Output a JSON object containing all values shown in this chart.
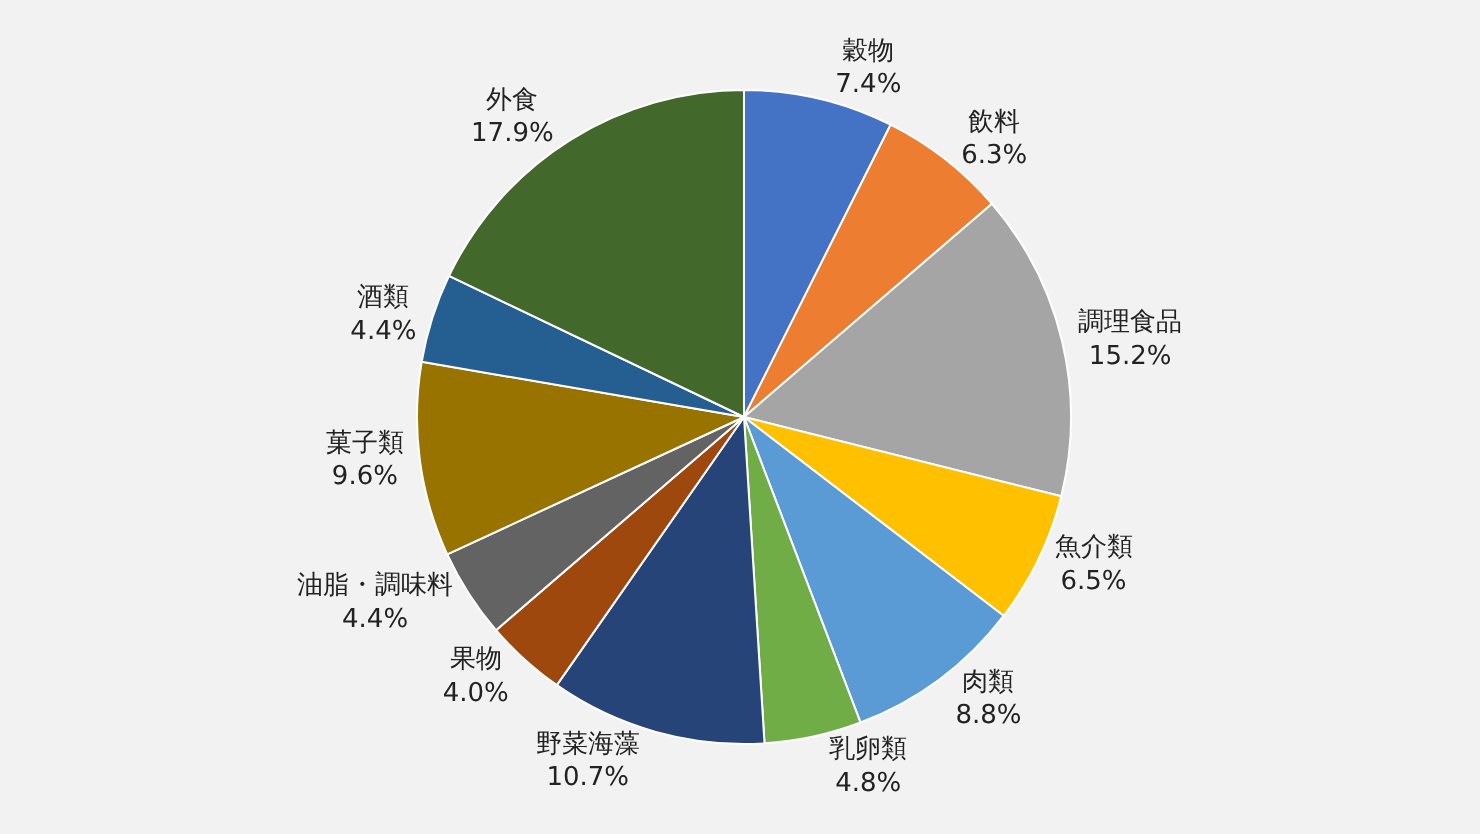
{
  "chart_data": {
    "type": "pie",
    "categories": [
      "穀物",
      "飲料",
      "調理食品",
      "魚介類",
      "肉類",
      "乳卵類",
      "野菜海藻",
      "果物",
      "油脂・調味料",
      "菓子類",
      "酒類",
      "外食"
    ],
    "values": [
      7.4,
      6.3,
      15.2,
      6.5,
      8.8,
      4.8,
      10.7,
      4.0,
      4.4,
      9.6,
      4.4,
      17.9
    ],
    "value_labels": [
      "7.4%",
      "6.3%",
      "15.2%",
      "6.5%",
      "8.8%",
      "4.8%",
      "10.7%",
      "4.0%",
      "4.4%",
      "9.6%",
      "4.4%",
      "17.9%"
    ],
    "colors": [
      "#4472c4",
      "#ed7d31",
      "#a5a5a5",
      "#ffc000",
      "#5b9bd5",
      "#70ad47",
      "#264478",
      "#9e480e",
      "#636363",
      "#997300",
      "#255e91",
      "#43682b"
    ],
    "legend": false
  }
}
